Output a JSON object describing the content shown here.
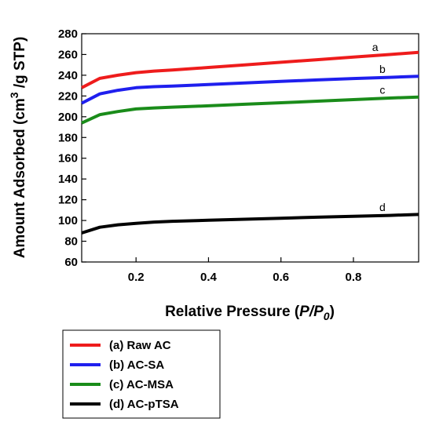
{
  "chart_data": {
    "type": "line",
    "xlabel_prefix": "Relative Pressure (",
    "xlabel_italic": "P/P",
    "xlabel_sub": "0",
    "xlabel_suffix": ")",
    "ylabel_prefix": "Amount Adsorbed (cm",
    "ylabel_sup": "3",
    "ylabel_suffix": " /g STP)",
    "xlim": [
      0.05,
      0.98
    ],
    "ylim": [
      60,
      280
    ],
    "xticks": [
      0.2,
      0.4,
      0.6,
      0.8
    ],
    "xtick_labels": [
      "0.2",
      "0.4",
      "0.6",
      "0.8"
    ],
    "yticks": [
      60,
      80,
      100,
      120,
      140,
      160,
      180,
      200,
      220,
      240,
      260,
      280
    ],
    "ytick_labels": [
      "60",
      "80",
      "100",
      "120",
      "140",
      "160",
      "180",
      "200",
      "220",
      "240",
      "260",
      "280"
    ],
    "grid": false,
    "legend_position": "bottom-left, outside plot",
    "x": [
      0.05,
      0.1,
      0.15,
      0.2,
      0.25,
      0.3,
      0.4,
      0.5,
      0.6,
      0.7,
      0.8,
      0.9,
      0.98
    ],
    "series": [
      {
        "name": "(a) Raw AC",
        "label": "a",
        "color": "#ee1c1c",
        "values": [
          228,
          237,
          240,
          242.5,
          244,
          245,
          247.5,
          250,
          252.5,
          255,
          257.5,
          260,
          262
        ]
      },
      {
        "name": "(b) AC-SA",
        "label": "b",
        "color": "#1f1fee",
        "values": [
          213,
          222,
          225.5,
          228,
          229,
          229.5,
          231,
          232.5,
          234,
          235.5,
          236.8,
          238,
          239
        ]
      },
      {
        "name": "(c) AC-MSA",
        "label": "c",
        "color": "#1a8c1a",
        "values": [
          194,
          202,
          205,
          207.5,
          208.5,
          209.2,
          210.5,
          212,
          213.5,
          215,
          216.5,
          218,
          219
        ]
      },
      {
        "name": "(d) AC-pTSA",
        "label": "d",
        "color": "#000000",
        "values": [
          88,
          93.5,
          95.8,
          97.3,
          98.5,
          99.2,
          100.2,
          101.2,
          102.2,
          103.2,
          104,
          104.9,
          105.8
        ]
      }
    ]
  }
}
